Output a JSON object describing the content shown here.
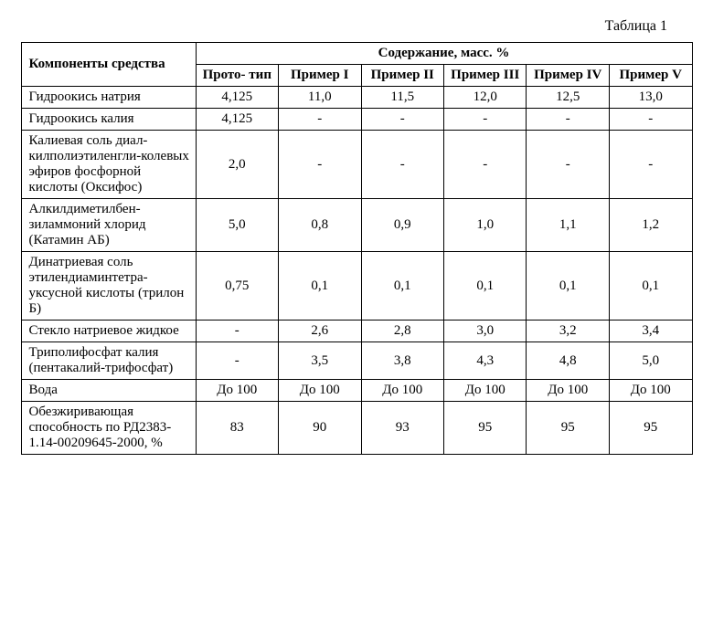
{
  "caption": "Таблица 1",
  "headers": {
    "col1": "Компоненты средства",
    "super": "Содержание, масс. %",
    "cols": [
      "Прото-\nтип",
      "Пример I",
      "Пример II",
      "Пример III",
      "Пример IV",
      "Пример V"
    ]
  },
  "rows": [
    {
      "label": "Гидроокись натрия",
      "vals": [
        "4,125",
        "11,0",
        "11,5",
        "12,0",
        "12,5",
        "13,0"
      ]
    },
    {
      "label": "Гидроокись калия",
      "vals": [
        "4,125",
        "-",
        "-",
        "-",
        "-",
        "-"
      ]
    },
    {
      "label": "Калиевая соль диал-килполиэтиленгли-колевых эфиров фосфорной кислоты (Оксифос)",
      "vals": [
        "2,0",
        "-",
        "-",
        "-",
        "-",
        "-"
      ]
    },
    {
      "label": "Алкилдиметилбен-зиламмоний хлорид (Катамин АБ)",
      "vals": [
        "5,0",
        "0,8",
        "0,9",
        "1,0",
        "1,1",
        "1,2"
      ]
    },
    {
      "label": "Динатриевая соль этилендиаминтетра-уксусной кислоты (трилон Б)",
      "vals": [
        "0,75",
        "0,1",
        "0,1",
        "0,1",
        "0,1",
        "0,1"
      ]
    },
    {
      "label": "Стекло натриевое жидкое",
      "vals": [
        "-",
        "2,6",
        "2,8",
        "3,0",
        "3,2",
        "3,4"
      ]
    },
    {
      "label": "Триполифосфат калия (пентакалий-трифосфат)",
      "vals": [
        "-",
        "3,5",
        "3,8",
        "4,3",
        "4,8",
        "5,0"
      ]
    },
    {
      "label": "Вода",
      "vals": [
        "До 100",
        "До 100",
        "До 100",
        "До 100",
        "До 100",
        "До 100"
      ]
    },
    {
      "label": "Обезжиривающая способность по РД2383-1.14-00209645-2000, %",
      "vals": [
        "83",
        "90",
        "93",
        "95",
        "95",
        "95"
      ]
    }
  ],
  "style": {
    "background": "#ffffff",
    "border_color": "#000000",
    "font_family": "Times New Roman",
    "font_size_body": 15,
    "font_size_caption": 16
  }
}
